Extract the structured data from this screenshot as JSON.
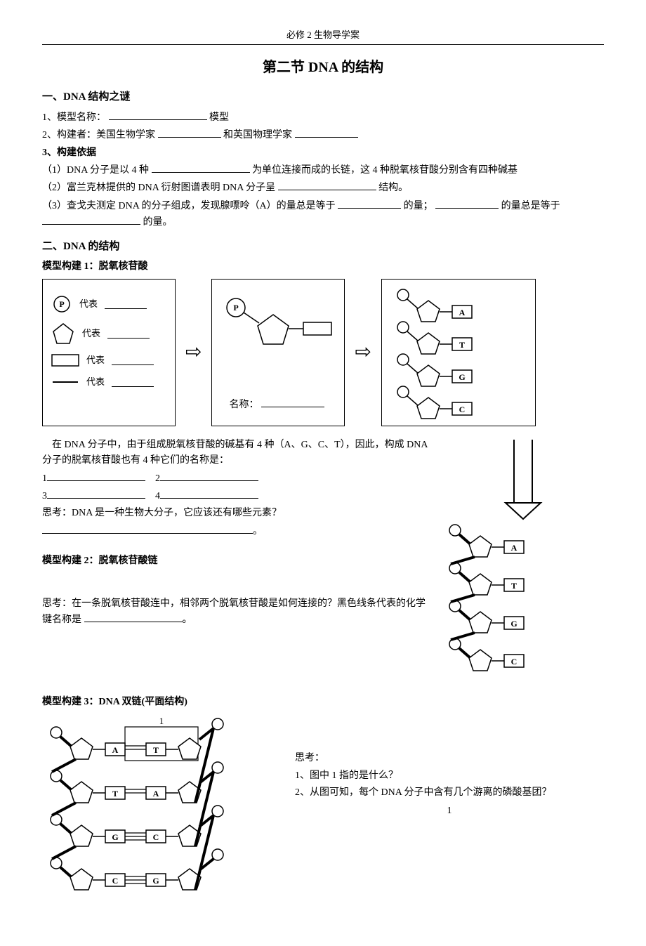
{
  "header": "必修 2 生物导学案",
  "title": "第二节  DNA 的结构",
  "section1": {
    "heading": "一、DNA 结构之谜",
    "q1_label": "1、模型名称：",
    "q1_suffix": "模型",
    "q2_label": "2、构建者：美国生物学家",
    "q2_mid": "和英国物理学家",
    "q3_label": "3、构建依据",
    "q3_1_prefix": "（1）DNA 分子是以 4 种",
    "q3_1_suffix": "为单位连接而成的长链，这 4 种脱氧核苷酸分别含有四种碱基",
    "q3_2_prefix": "（2）富兰克林提供的 DNA 衍射图谱表明 DNA 分子呈",
    "q3_2_suffix": "结构。",
    "q3_3_prefix": "（3）查戈夫测定 DNA 的分子组成，发现腺嘌呤（A）的量总是等于",
    "q3_3_mid": "的量；",
    "q3_3_mid2": "的量总是等于",
    "q3_3_suffix": "的量。"
  },
  "section2": {
    "heading": "二、DNA 的结构",
    "model1": "模型构建 1：脱氧核苷酸",
    "legend_p": "代表",
    "legend_pentagon": "代表",
    "legend_rect": "代表",
    "legend_line": "代表",
    "name_label": "名称：",
    "bases": [
      "A",
      "T",
      "G",
      "C"
    ],
    "para1": "在 DNA 分子中，由于组成脱氧核苷酸的碱基有 4 种（A、G、C、T），因此，构成 DNA 分子的脱氧核苷酸也有 4 种它们的名称是：",
    "list_labels": [
      "1",
      "2",
      "3",
      "4"
    ],
    "think1": "思考：DNA 是一种生物大分子，它应该还有哪些元素？",
    "period": "。",
    "model2": "模型构建 2：脱氧核苷酸链",
    "think2": "思考：在一条脱氧核苷酸连中，相邻两个脱氧核苷酸是如何连接的？黑色线条代表的化学键名称是",
    "model3": "模型构建 3：DNA 双链(平面结构)",
    "fig3_label1": "1",
    "fig3_bases": [
      [
        "A",
        "T"
      ],
      [
        "T",
        "A"
      ],
      [
        "G",
        "C"
      ],
      [
        "C",
        "G"
      ]
    ],
    "think3_heading": "思考：",
    "think3_q1": "1、图中 1 指的是什么？",
    "think3_q2": "2、从图可知，每个 DNA 分子中含有几个游离的磷酸基团？"
  },
  "style": {
    "stroke": "#000000",
    "stroke_width": 1.5,
    "fill": "#ffffff",
    "font": "12px SimSun"
  },
  "page_number": "1"
}
